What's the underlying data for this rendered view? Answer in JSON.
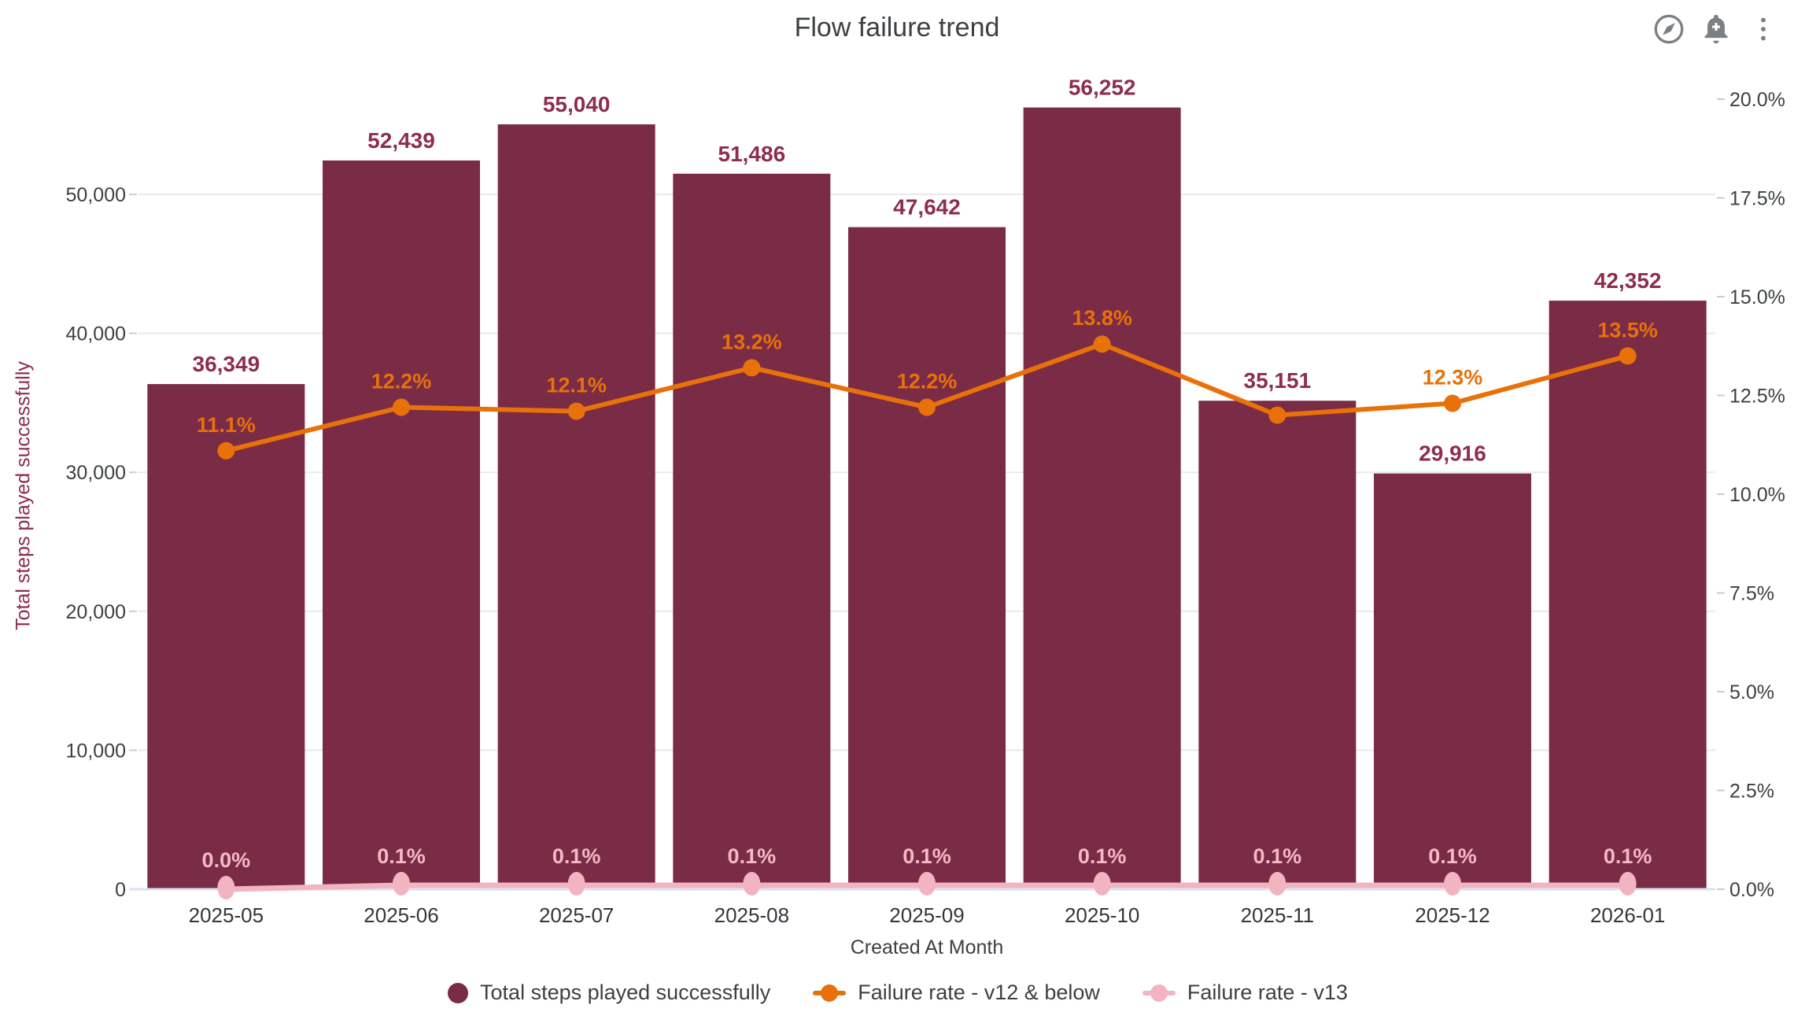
{
  "header": {
    "title": "Flow failure trend",
    "toolbar_icons": [
      "explore-compass-icon",
      "add-alert-icon",
      "more-options-icon"
    ]
  },
  "chart_data": {
    "type": "bar",
    "subtype": "combo-bar-line-dual-axis",
    "title": "Flow failure trend",
    "categories": [
      "2025-05",
      "2025-06",
      "2025-07",
      "2025-08",
      "2025-09",
      "2025-10",
      "2025-11",
      "2025-12",
      "2026-01"
    ],
    "series": [
      {
        "name": "Total steps played successfully",
        "type": "bar",
        "axis": "left",
        "color": "#7a2b45",
        "label_color": "#8e2d50",
        "values": [
          36349,
          52439,
          55040,
          51486,
          47642,
          56252,
          35151,
          29916,
          42352
        ],
        "value_labels": [
          "36,349",
          "52,439",
          "55,040",
          "51,486",
          "47,642",
          "56,252",
          "35,151",
          "29,916",
          "42,352"
        ]
      },
      {
        "name": "Failure rate - v12 & below",
        "type": "line",
        "axis": "right",
        "color": "#e8710a",
        "label_color": "#e8710a",
        "values": [
          11.1,
          12.2,
          12.1,
          13.2,
          12.2,
          13.8,
          12.0,
          12.3,
          13.5
        ],
        "value_labels": [
          "11.1%",
          "12.2%",
          "12.1%",
          "13.2%",
          "12.2%",
          "13.8%",
          "",
          "12.3%",
          "13.5%"
        ]
      },
      {
        "name": "Failure rate - v13",
        "type": "line",
        "axis": "right",
        "color": "#f2b4c0",
        "label_color": "#f4bac5",
        "values": [
          0.0,
          0.1,
          0.1,
          0.1,
          0.1,
          0.1,
          0.1,
          0.1,
          0.1
        ],
        "value_labels": [
          "0.0%",
          "0.1%",
          "0.1%",
          "0.1%",
          "0.1%",
          "0.1%",
          "0.1%",
          "0.1%",
          "0.1%"
        ]
      }
    ],
    "xlabel": "Created At Month",
    "ylabel_left": "Total steps played successfully",
    "left_axis": {
      "tick_labels": [
        "0",
        "10,000",
        "20,000",
        "30,000",
        "40,000",
        "50,000"
      ],
      "tick_values": [
        0,
        10000,
        20000,
        30000,
        40000,
        50000
      ],
      "range": [
        0,
        50000
      ]
    },
    "right_axis": {
      "tick_labels": [
        "0.0%",
        "2.5%",
        "5.0%",
        "7.5%",
        "10.0%",
        "12.5%",
        "15.0%",
        "17.5%",
        "20.0%"
      ],
      "tick_values": [
        0,
        2.5,
        5,
        7.5,
        10,
        12.5,
        15,
        17.5,
        20
      ],
      "range": [
        0,
        20
      ]
    },
    "grid": "horizontal gridlines at left-axis ticks",
    "legend_position": "bottom"
  }
}
